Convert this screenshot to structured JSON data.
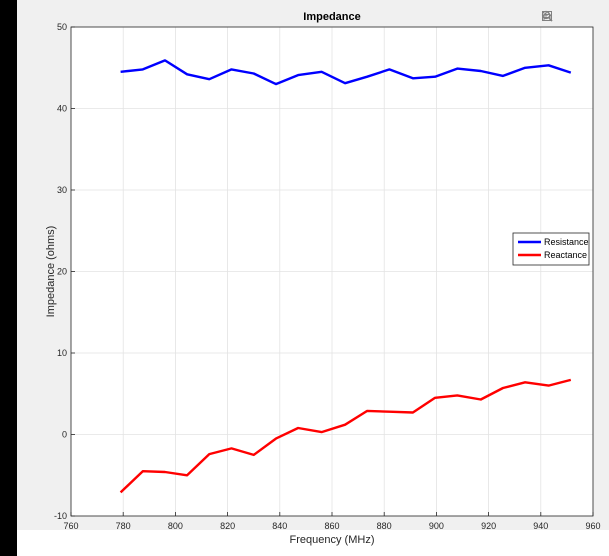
{
  "toolbar": {
    "icons": [
      "export-icon",
      "zoom-in-icon",
      "zoom-out-icon",
      "home-icon"
    ]
  },
  "chart_data": {
    "type": "line",
    "title": "Impedance",
    "xlabel": "Frequency (MHz)",
    "ylabel": "Impedance (ohms)",
    "xlim": [
      760,
      960
    ],
    "ylim": [
      -10,
      50
    ],
    "xticks": [
      760,
      780,
      800,
      820,
      840,
      860,
      880,
      900,
      920,
      940,
      960
    ],
    "yticks": [
      -10,
      0,
      10,
      20,
      30,
      40,
      50
    ],
    "grid": true,
    "legend_position": "right",
    "x": [
      779,
      787.5,
      796,
      804.5,
      813,
      821.5,
      830,
      838.5,
      847,
      856,
      865,
      873.5,
      882,
      891,
      899.5,
      908,
      917,
      925.5,
      934,
      943,
      951.5
    ],
    "series": [
      {
        "name": "Resistance",
        "color": "#0000ff",
        "values": [
          44.5,
          44.8,
          45.9,
          44.2,
          43.6,
          44.8,
          44.3,
          43.0,
          44.1,
          44.5,
          43.1,
          43.9,
          44.8,
          43.7,
          43.9,
          44.9,
          44.6,
          44.0,
          45.0,
          45.3,
          44.4
        ]
      },
      {
        "name": "Reactance",
        "color": "#ff0000",
        "values": [
          -7.1,
          -4.5,
          -4.6,
          -5.0,
          -2.4,
          -1.7,
          -2.5,
          -0.5,
          0.8,
          0.3,
          1.2,
          2.9,
          2.8,
          2.7,
          4.5,
          4.8,
          4.3,
          5.7,
          6.4,
          6.0,
          6.7
        ]
      }
    ]
  }
}
